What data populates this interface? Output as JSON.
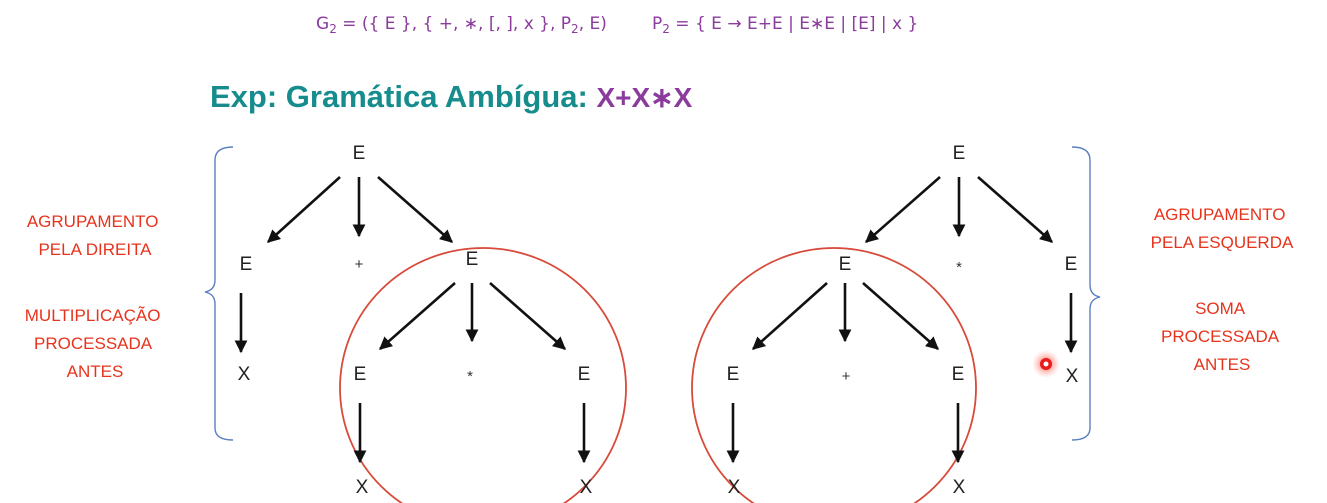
{
  "grammar": {
    "g2_label": "G",
    "g2_sub": "2",
    "g2_def_a": " = ({ E }, { +, ∗, [, ], x }, P",
    "g2_def_sub": "2",
    "g2_def_b": ", E)",
    "p2_label": "P",
    "p2_sub": "2",
    "p2_rules": " = { E → E+E | E∗E | [E] | x }"
  },
  "title": {
    "prefix": "Exp:  Gramática Ambígua: ",
    "expression": "X+X∗X"
  },
  "left_tree": {
    "root": "E",
    "left_child": "E",
    "operator": "+",
    "right_child": "E",
    "left_leaf": "X",
    "sub_left": "E",
    "sub_operator": "*",
    "sub_right": "E",
    "sub_left_leaf": "X",
    "sub_right_leaf": "X"
  },
  "right_tree": {
    "root": "E",
    "left_child": "E",
    "operator": "*",
    "right_child": "E",
    "right_leaf": "X",
    "sub_left": "E",
    "sub_operator": "+",
    "sub_right": "E",
    "sub_left_leaf": "X",
    "sub_right_leaf": "X"
  },
  "notes": {
    "left_grouping": [
      "AGRUPAMENTO",
      "PELA DIREITA"
    ],
    "left_processing": [
      "MULTIPLICAÇÃO",
      "PROCESSADA",
      "ANTES"
    ],
    "right_grouping": [
      "AGRUPAMENTO",
      "PELA ESQUERDA"
    ],
    "right_processing": [
      "SOMA",
      "PROCESSADA",
      "ANTES"
    ]
  },
  "colors": {
    "grammar": "#8a3b9c",
    "title": "#168c8c",
    "notes": "#e8331c",
    "circle": "#d84a3a",
    "brace": "#5b7fc0",
    "cursor": "#e81c1c"
  }
}
